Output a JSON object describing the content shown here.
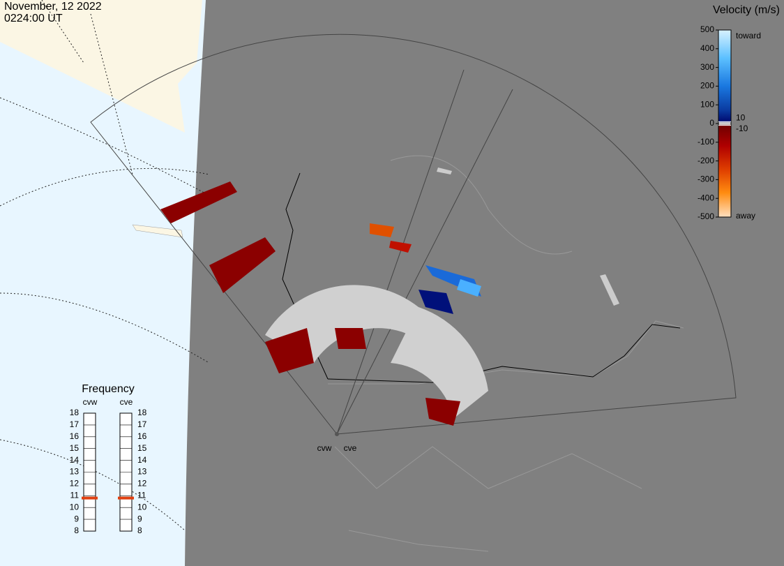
{
  "header": {
    "date": "November, 12 2022",
    "time": "0224:00 UT"
  },
  "colorbar": {
    "title": "Velocity (m/s)",
    "ticks": [
      500,
      400,
      300,
      200,
      100,
      0,
      -100,
      -200,
      -300,
      -400,
      -500
    ],
    "inner_ticks": [
      10,
      -10
    ],
    "top_label": "toward",
    "bottom_label": "away"
  },
  "frequency": {
    "title": "Frequency",
    "ticks": [
      8,
      9,
      10,
      11,
      12,
      13,
      14,
      15,
      16,
      17,
      18
    ],
    "radars": [
      {
        "name": "cvw",
        "value": 10.8
      },
      {
        "name": "cve",
        "value": 10.8
      }
    ]
  },
  "map": {
    "radar_labels": [
      "cvw",
      "cve"
    ]
  }
}
